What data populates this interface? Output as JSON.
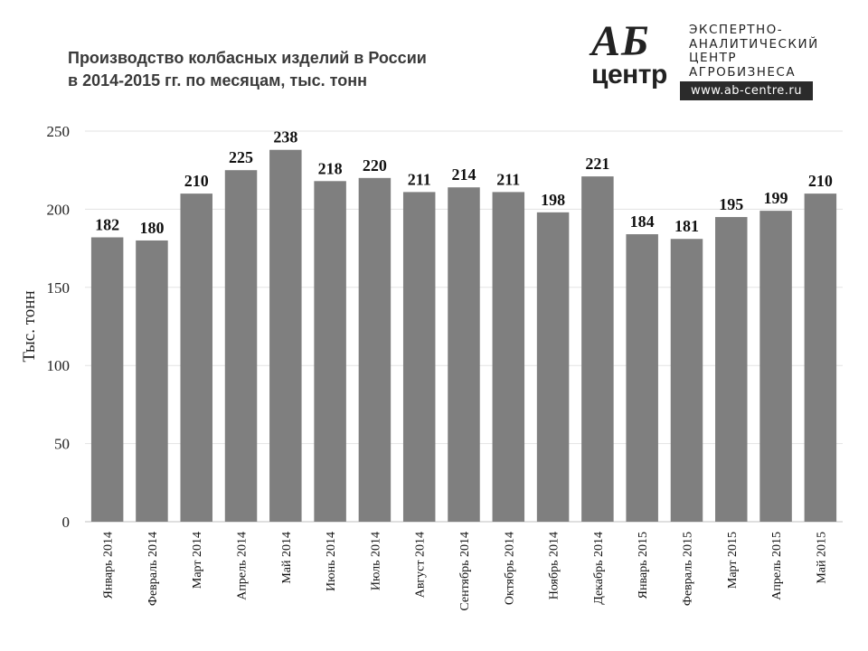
{
  "header": {
    "title_line1": "Производство колбасных изделий в России",
    "title_line2": "в 2014-2015 гг. по месяцам, тыс. тонн"
  },
  "logo": {
    "mark_line1": "АБ",
    "mark_line2": "центр",
    "text_lines": [
      "ЭКСПЕРТНО-",
      "АНАЛИТИЧЕСКИЙ",
      "ЦЕНТР",
      "АГРОБИЗНЕСА"
    ],
    "url": "www.ab-centre.ru"
  },
  "chart_data": {
    "type": "bar",
    "title": "Производство колбасных изделий в России в 2014-2015 гг. по месяцам, тыс. тонн",
    "xlabel": "",
    "ylabel": "Тыс. тонн",
    "ylim": [
      0,
      250
    ],
    "yticks": [
      0,
      50,
      100,
      150,
      200,
      250
    ],
    "grid": "horizontal",
    "bar_color": "#7f7f7f",
    "categories": [
      "Январь 2014",
      "Февраль 2014",
      "Март 2014",
      "Апрель 2014",
      "Май 2014",
      "Июнь 2014",
      "Июль 2014",
      "Август 2014",
      "Сентябрь 2014",
      "Октябрь 2014",
      "Ноябрь 2014",
      "Декабрь 2014",
      "Январь 2015",
      "Февраль 2015",
      "Март 2015",
      "Апрель 2015",
      "Май 2015"
    ],
    "values": [
      182,
      180,
      210,
      225,
      238,
      218,
      220,
      211,
      214,
      211,
      198,
      221,
      184,
      181,
      195,
      199,
      210
    ]
  }
}
